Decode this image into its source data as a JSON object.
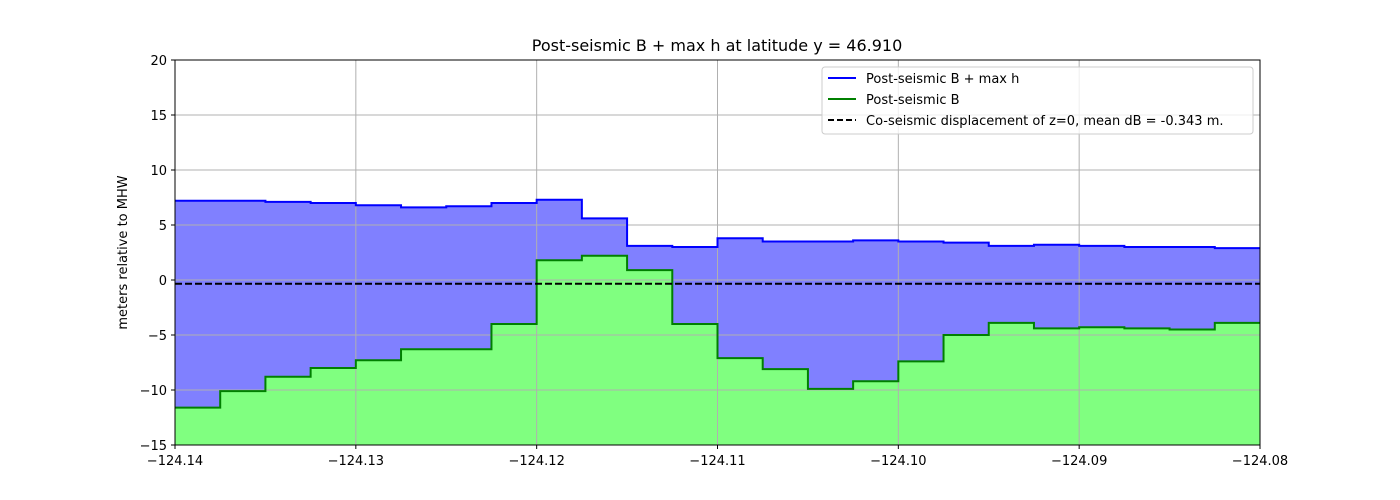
{
  "chart_data": {
    "type": "area",
    "title": "Post-seismic B + max h at latitude y = 46.910",
    "xlabel": "",
    "ylabel": "meters relative to MHW",
    "xlim": [
      -124.14,
      -124.08
    ],
    "ylim": [
      -15,
      20
    ],
    "x_ticks": [
      -124.14,
      -124.13,
      -124.12,
      -124.11,
      -124.1,
      -124.09,
      -124.08
    ],
    "x_tick_labels": [
      "−124.14",
      "−124.13",
      "−124.12",
      "−124.11",
      "−124.10",
      "−124.09",
      "−124.08"
    ],
    "y_ticks": [
      -15,
      -10,
      -5,
      0,
      5,
      10,
      15,
      20
    ],
    "y_tick_labels": [
      "−15",
      "−10",
      "−5",
      "0",
      "5",
      "10",
      "15",
      "20"
    ],
    "grid": true,
    "legend_position": "top-right",
    "step_edges": [
      -124.14,
      -124.1375,
      -124.135,
      -124.1325,
      -124.13,
      -124.1275,
      -124.125,
      -124.1225,
      -124.12,
      -124.1175,
      -124.115,
      -124.1125,
      -124.11,
      -124.1075,
      -124.105,
      -124.1025,
      -124.1,
      -124.0975,
      -124.095,
      -124.0925,
      -124.09,
      -124.0875,
      -124.085,
      -124.0825,
      -124.08
    ],
    "series": [
      {
        "name": "Post-seismic B + max h",
        "color": "#0000ff",
        "fill": "#8080ff",
        "style": "solid",
        "values": [
          7.2,
          7.2,
          7.1,
          7.0,
          6.8,
          6.6,
          6.7,
          7.0,
          7.3,
          5.6,
          3.1,
          3.0,
          3.8,
          3.5,
          3.5,
          3.6,
          3.5,
          3.4,
          3.1,
          3.2,
          3.1,
          3.0,
          3.0,
          2.9
        ]
      },
      {
        "name": "Post-seismic B",
        "color": "#008000",
        "fill": "#80ff80",
        "style": "solid",
        "values": [
          -11.6,
          -10.1,
          -8.8,
          -8.0,
          -7.3,
          -6.3,
          -6.3,
          -4.0,
          1.8,
          2.2,
          0.9,
          -4.0,
          -7.1,
          -8.1,
          -9.9,
          -9.2,
          -7.4,
          -5.0,
          -3.9,
          -4.4,
          -4.3,
          -4.4,
          -4.5,
          -3.9
        ]
      },
      {
        "name": "Co-seismic displacement of z=0, mean dB = -0.343 m.",
        "color": "#000000",
        "style": "dashed",
        "constant": -0.343
      }
    ]
  }
}
